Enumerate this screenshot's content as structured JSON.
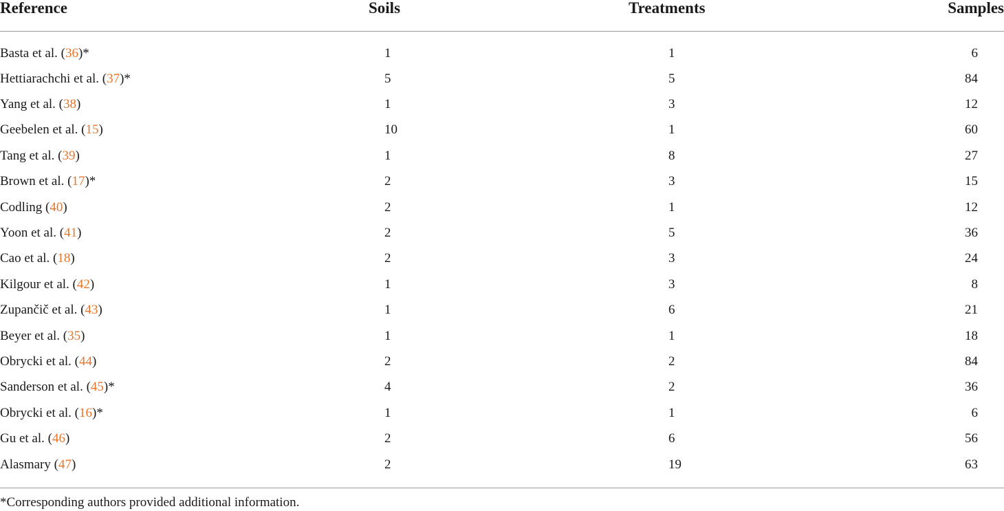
{
  "columns": {
    "reference": "Reference",
    "soils": "Soils",
    "treatments": "Treatments",
    "samples": "Samples"
  },
  "rows": [
    {
      "author": "Basta et al. (",
      "cite": "36",
      "suffix": ")*",
      "soils": "1",
      "treatments": "1",
      "samples": "6"
    },
    {
      "author": "Hettiarachchi et al. (",
      "cite": "37",
      "suffix": ")*",
      "soils": "5",
      "treatments": "5",
      "samples": "84"
    },
    {
      "author": "Yang et al. (",
      "cite": "38",
      "suffix": ")",
      "soils": "1",
      "treatments": "3",
      "samples": "12"
    },
    {
      "author": "Geebelen et al. (",
      "cite": "15",
      "suffix": ")",
      "soils": "10",
      "treatments": "1",
      "samples": "60"
    },
    {
      "author": "Tang et al. (",
      "cite": "39",
      "suffix": ")",
      "soils": "1",
      "treatments": "8",
      "samples": "27"
    },
    {
      "author": "Brown et al. (",
      "cite": "17",
      "suffix": ")*",
      "soils": "2",
      "treatments": "3",
      "samples": "15"
    },
    {
      "author": "Codling (",
      "cite": "40",
      "suffix": ")",
      "soils": "2",
      "treatments": "1",
      "samples": "12"
    },
    {
      "author": "Yoon et al. (",
      "cite": "41",
      "suffix": ")",
      "soils": "2",
      "treatments": "5",
      "samples": "36"
    },
    {
      "author": "Cao et al. (",
      "cite": "18",
      "suffix": ")",
      "soils": "2",
      "treatments": "3",
      "samples": "24"
    },
    {
      "author": "Kilgour et al. (",
      "cite": "42",
      "suffix": ")",
      "soils": "1",
      "treatments": "3",
      "samples": "8"
    },
    {
      "author": "Zupančič et al. (",
      "cite": "43",
      "suffix": ")",
      "soils": "1",
      "treatments": "6",
      "samples": "21"
    },
    {
      "author": "Beyer et al. (",
      "cite": "35",
      "suffix": ")",
      "soils": "1",
      "treatments": "1",
      "samples": "18"
    },
    {
      "author": "Obrycki et al. (",
      "cite": "44",
      "suffix": ")",
      "soils": "2",
      "treatments": "2",
      "samples": "84"
    },
    {
      "author": "Sanderson et al. (",
      "cite": "45",
      "suffix": ")*",
      "soils": "4",
      "treatments": "2",
      "samples": "36"
    },
    {
      "author": "Obrycki et al. (",
      "cite": "16",
      "suffix": ")*",
      "soils": "1",
      "treatments": "1",
      "samples": "6"
    },
    {
      "author": "Gu et al. (",
      "cite": "46",
      "suffix": ")",
      "soils": "2",
      "treatments": "6",
      "samples": "56"
    },
    {
      "author": "Alasmary (",
      "cite": "47",
      "suffix": ")",
      "soils": "2",
      "treatments": "19",
      "samples": "63"
    }
  ],
  "footnote": "*Corresponding authors provided additional information.",
  "colors": {
    "citation": "#e8752a",
    "rule": "#9a9a9a",
    "text": "#1a1a1a"
  }
}
